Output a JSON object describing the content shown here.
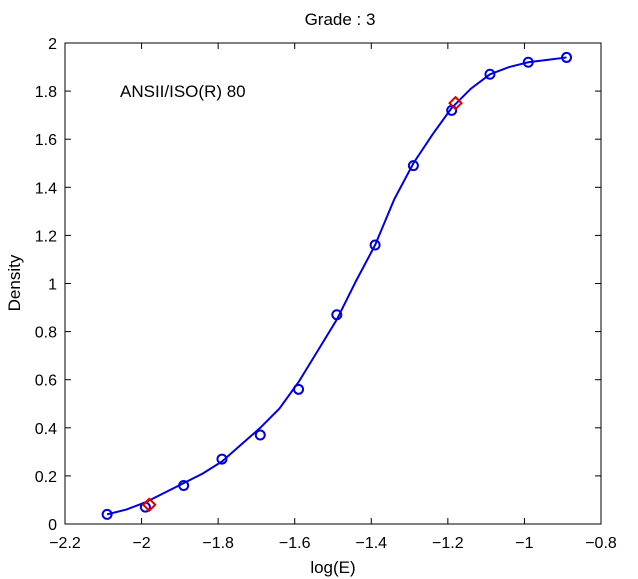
{
  "chart_data": {
    "type": "line",
    "title": "Grade : 3",
    "xlabel": "log(E)",
    "ylabel": "Density",
    "xlim": [
      -2.2,
      -0.8
    ],
    "ylim": [
      0,
      2
    ],
    "xticks": [
      -2.2,
      -2,
      -1.8,
      -1.6,
      -1.4,
      -1.2,
      -1,
      -0.8
    ],
    "xtick_labels": [
      "−2.2",
      "−2",
      "−1.8",
      "−1.6",
      "−1.4",
      "−1.2",
      "−1",
      "−0.8"
    ],
    "yticks": [
      0,
      0.2,
      0.4,
      0.6,
      0.8,
      1,
      1.2,
      1.4,
      1.6,
      1.8,
      2
    ],
    "ytick_labels": [
      "0",
      "0.2",
      "0.4",
      "0.6",
      "0.8",
      "1",
      "1.2",
      "1.4",
      "1.6",
      "1.8",
      "2"
    ],
    "grid": false,
    "annotation": "ANSII/ISO(R)  80",
    "colors": {
      "curve": "#0000dd",
      "points": "#0000dd",
      "markers": "#dd0000"
    },
    "points": {
      "marker": "circle",
      "x": [
        -2.09,
        -1.99,
        -1.89,
        -1.79,
        -1.69,
        -1.59,
        -1.49,
        -1.39,
        -1.29,
        -1.19,
        -1.09,
        -0.99,
        -0.89
      ],
      "y": [
        0.04,
        0.07,
        0.16,
        0.27,
        0.37,
        0.56,
        0.87,
        1.16,
        1.49,
        1.72,
        1.87,
        1.92,
        1.94
      ]
    },
    "curve": {
      "x": [
        -2.09,
        -2.04,
        -1.99,
        -1.94,
        -1.89,
        -1.84,
        -1.79,
        -1.74,
        -1.69,
        -1.64,
        -1.59,
        -1.54,
        -1.49,
        -1.44,
        -1.39,
        -1.34,
        -1.29,
        -1.24,
        -1.19,
        -1.14,
        -1.09,
        -1.04,
        -0.99,
        -0.94,
        -0.89
      ],
      "y": [
        0.04,
        0.06,
        0.09,
        0.13,
        0.17,
        0.21,
        0.26,
        0.33,
        0.4,
        0.48,
        0.59,
        0.72,
        0.85,
        1.01,
        1.16,
        1.35,
        1.5,
        1.62,
        1.73,
        1.81,
        1.87,
        1.9,
        1.92,
        1.93,
        1.94
      ]
    },
    "markers": {
      "marker": "diamond",
      "x": [
        -1.98,
        -1.18
      ],
      "y": [
        0.08,
        1.75
      ]
    }
  }
}
